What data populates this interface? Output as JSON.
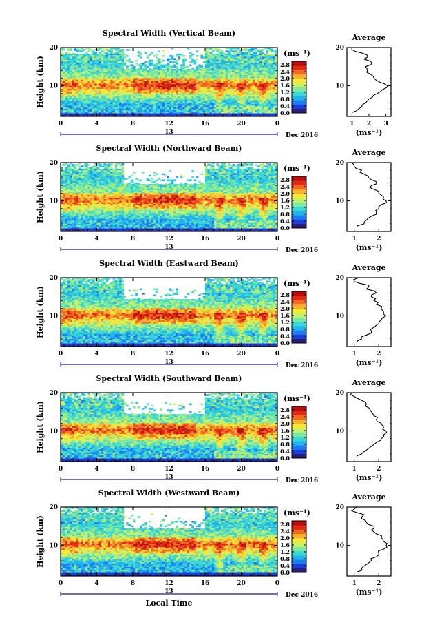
{
  "figure": {
    "xlabel": "Local Time",
    "date_label": "Dec 2016",
    "date_day": "13",
    "ylabel": "Height (km)",
    "unit": "(ms⁻¹)",
    "avg_title": "Average",
    "avg_xlabel": "(ms⁻¹)"
  },
  "chart_data": [
    {
      "type": "heatmap",
      "title": "Spectral Width (Vertical Beam)",
      "xlabel": "",
      "ylabel": "Height (km)",
      "x_ticks": [
        "0",
        "4",
        "8",
        "12",
        "16",
        "20",
        "0"
      ],
      "xlim": [
        0,
        24
      ],
      "y_ticks": [
        "20",
        "10"
      ],
      "ylim": [
        2,
        20
      ],
      "colorbar": {
        "label": "(ms⁻¹)",
        "ticks": [
          "2.8",
          "2.4",
          "2.0",
          "1.6",
          "1.2",
          "0.8",
          "0.4",
          "0.0"
        ],
        "range": [
          0.0,
          3.0
        ]
      },
      "profile": {
        "title": "Average",
        "xlabel": "(ms⁻¹)",
        "x_ticks": [
          "1",
          "2",
          "3"
        ],
        "xlim": [
          0.7,
          3.3
        ],
        "heights": [
          3,
          4,
          5,
          6,
          7,
          8,
          9,
          10,
          11,
          12,
          13,
          14,
          15,
          16,
          17,
          18,
          19,
          20
        ],
        "values": [
          1.0,
          1.4,
          1.6,
          1.9,
          2.2,
          2.5,
          2.8,
          3.1,
          2.6,
          2.3,
          2.1,
          1.9,
          1.8,
          2.2,
          1.7,
          1.9,
          1.2,
          1.0
        ]
      }
    },
    {
      "type": "heatmap",
      "title": "Spectral Width (Northward Beam)",
      "xlabel": "",
      "ylabel": "Height (km)",
      "x_ticks": [
        "0",
        "4",
        "8",
        "12",
        "16",
        "20",
        "0"
      ],
      "xlim": [
        0,
        24
      ],
      "y_ticks": [
        "20",
        "10"
      ],
      "ylim": [
        2,
        20
      ],
      "colorbar": {
        "label": "(ms⁻¹)",
        "ticks": [
          "2.8",
          "2.4",
          "2.0",
          "1.6",
          "1.2",
          "0.8",
          "0.4",
          "0.0"
        ],
        "range": [
          0.0,
          3.0
        ]
      },
      "profile": {
        "title": "Average",
        "xlabel": "(ms⁻¹)",
        "x_ticks": [
          "1",
          "2"
        ],
        "xlim": [
          0.7,
          2.5
        ],
        "heights": [
          3,
          4,
          5,
          6,
          7,
          8,
          9,
          10,
          11,
          12,
          13,
          14,
          15,
          16,
          17,
          18,
          19,
          20
        ],
        "values": [
          1.1,
          1.4,
          1.5,
          1.7,
          1.9,
          2.0,
          2.1,
          2.3,
          2.2,
          2.0,
          1.8,
          1.7,
          1.9,
          1.6,
          1.4,
          1.3,
          1.0,
          0.9
        ]
      }
    },
    {
      "type": "heatmap",
      "title": "Spectral Width (Eastward Beam)",
      "xlabel": "",
      "ylabel": "Height (km)",
      "x_ticks": [
        "0",
        "4",
        "8",
        "12",
        "16",
        "20",
        "0"
      ],
      "xlim": [
        0,
        24
      ],
      "y_ticks": [
        "20",
        "10"
      ],
      "ylim": [
        2,
        20
      ],
      "colorbar": {
        "label": "(ms⁻¹)",
        "ticks": [
          "2.8",
          "2.4",
          "2.0",
          "1.6",
          "1.2",
          "0.8",
          "0.4",
          "0.0"
        ],
        "range": [
          0.0,
          3.0
        ]
      },
      "profile": {
        "title": "Average",
        "xlabel": "(ms⁻¹)",
        "x_ticks": [
          "1",
          "2"
        ],
        "xlim": [
          0.7,
          2.5
        ],
        "heights": [
          3,
          4,
          5,
          6,
          7,
          8,
          9,
          10,
          11,
          12,
          13,
          14,
          15,
          16,
          17,
          18,
          19,
          20
        ],
        "values": [
          1.1,
          1.3,
          1.5,
          1.7,
          1.8,
          2.0,
          2.1,
          2.3,
          2.2,
          2.1,
          1.9,
          1.8,
          1.7,
          1.9,
          1.5,
          1.6,
          1.0,
          1.2
        ]
      }
    },
    {
      "type": "heatmap",
      "title": "Spectral Width (Southward Beam)",
      "xlabel": "",
      "ylabel": "Height (km)",
      "x_ticks": [
        "0",
        "4",
        "8",
        "12",
        "16",
        "20",
        "0"
      ],
      "xlim": [
        0,
        24
      ],
      "y_ticks": [
        "20",
        "10"
      ],
      "ylim": [
        2,
        20
      ],
      "colorbar": {
        "label": "(ms⁻¹)",
        "ticks": [
          "2.8",
          "2.4",
          "2.0",
          "1.6",
          "1.2",
          "0.8",
          "0.4",
          "0.0"
        ],
        "range": [
          0.0,
          3.0
        ]
      },
      "profile": {
        "title": "Average",
        "xlabel": "(ms⁻¹)",
        "x_ticks": [
          "1",
          "2"
        ],
        "xlim": [
          0.7,
          2.5
        ],
        "heights": [
          3,
          4,
          5,
          6,
          7,
          8,
          9,
          10,
          11,
          12,
          13,
          14,
          15,
          16,
          17,
          18,
          19,
          20
        ],
        "values": [
          1.1,
          1.3,
          1.5,
          1.7,
          1.9,
          2.1,
          2.2,
          2.3,
          2.2,
          2.1,
          1.9,
          1.8,
          1.7,
          1.6,
          1.5,
          1.3,
          1.0,
          0.9
        ]
      }
    },
    {
      "type": "heatmap",
      "title": "Spectral Width (Westward Beam)",
      "xlabel": "Local Time",
      "ylabel": "Height (km)",
      "x_ticks": [
        "0",
        "4",
        "8",
        "12",
        "16",
        "20",
        "0"
      ],
      "xlim": [
        0,
        24
      ],
      "y_ticks": [
        "20",
        "10"
      ],
      "ylim": [
        2,
        20
      ],
      "colorbar": {
        "label": "(ms⁻¹)",
        "ticks": [
          "2.8",
          "2.4",
          "2.0",
          "1.6",
          "1.2",
          "0.8",
          "0.4",
          "0.0"
        ],
        "range": [
          0.0,
          3.0
        ]
      },
      "profile": {
        "title": "Average",
        "xlabel": "(ms⁻¹)",
        "x_ticks": [
          "1",
          "2"
        ],
        "xlim": [
          0.7,
          2.5
        ],
        "heights": [
          3,
          4,
          5,
          6,
          7,
          8,
          9,
          10,
          11,
          12,
          13,
          14,
          15,
          16,
          17,
          18,
          19,
          20
        ],
        "values": [
          1.1,
          1.3,
          1.5,
          1.7,
          1.9,
          2.0,
          2.2,
          2.3,
          2.2,
          2.1,
          1.9,
          1.7,
          1.8,
          1.5,
          1.3,
          1.4,
          0.9,
          1.1
        ]
      }
    }
  ],
  "colormap": [
    "#2a1e6e",
    "#1b3fd8",
    "#1c7cf0",
    "#23b4ee",
    "#3ad8d0",
    "#7fe8a0",
    "#c5f06a",
    "#f5e838",
    "#f8b02e",
    "#f06a22",
    "#e02a14",
    "#b81010"
  ]
}
